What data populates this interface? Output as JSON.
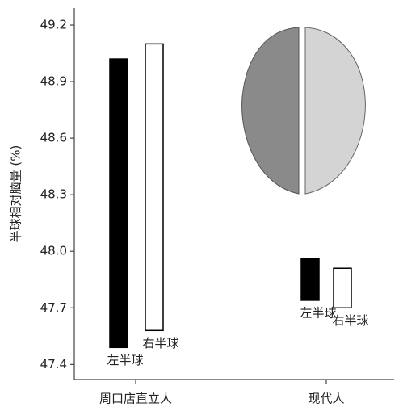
{
  "chart_data": {
    "type": "bar",
    "y_label": "半球相对脑量 (%)",
    "categories": [
      "周口店直立人",
      "现代人"
    ],
    "series": [
      {
        "name": "左半球",
        "color": "#000000",
        "low": [
          47.49,
          47.74
        ],
        "values": [
          49.02,
          47.96
        ]
      },
      {
        "name": "右半球",
        "color": "#ffffff",
        "low": [
          47.58,
          47.7
        ],
        "values": [
          49.1,
          47.91
        ]
      }
    ],
    "ylim": [
      47.32,
      49.29
    ],
    "yticks": [
      47.4,
      47.7,
      {
        "value": 48,
        "label": "48.0"
      },
      48.3,
      48.6,
      48.9,
      49.2
    ]
  }
}
